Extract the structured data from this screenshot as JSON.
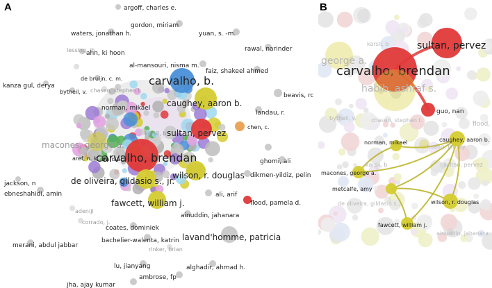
{
  "panel_a": {
    "letter": "A",
    "nodes": [
      {
        "label": "argoff, charles e.",
        "color": "#c8c8c8",
        "size": "m",
        "emph": "normal"
      },
      {
        "label": "gordon, miriam",
        "color": "#c8c8c8",
        "size": "m",
        "emph": "normal"
      },
      {
        "label": "waters, jonathan h.",
        "color": "#c8c8c8",
        "size": "m",
        "emph": "normal"
      },
      {
        "label": "yuan, s. -m.",
        "color": "#c8c8c8",
        "size": "m",
        "emph": "normal"
      },
      {
        "label": "rawal, narinder",
        "color": "#c8c8c8",
        "size": "m",
        "emph": "normal"
      },
      {
        "label": "ahn, ki hoon",
        "color": "#c8c8c8",
        "size": "m",
        "emph": "normal"
      },
      {
        "label": "al-mansouri, nisma m.",
        "color": "#c8c8c8",
        "size": "m",
        "emph": "normal"
      },
      {
        "label": "faiz, shakeel ahmed",
        "color": "#c8c8c8",
        "size": "m",
        "emph": "normal"
      },
      {
        "label": "lessing, jb",
        "color": "#c8c8c8",
        "size": "s",
        "emph": "faded"
      },
      {
        "label": "de bruijn, c. m.",
        "color": "#c8c8c8",
        "size": "s",
        "emph": "normal"
      },
      {
        "label": "carvalho, b.",
        "color": "#4a8fd8",
        "size": "xl",
        "emph": "normal"
      },
      {
        "label": "kanza gul, derya",
        "color": "#c8c8c8",
        "size": "m",
        "emph": "normal"
      },
      {
        "label": "chasen, stephen t.",
        "color": "#c8c8c8",
        "size": "s",
        "emph": "faded"
      },
      {
        "label": "bytheil, v.",
        "color": "#c8c8c8",
        "size": "s",
        "emph": "normal"
      },
      {
        "label": "beavis, rc",
        "color": "#c8c8c8",
        "size": "m",
        "emph": "normal"
      },
      {
        "label": "norman, mikael",
        "color": "#c8c8c8",
        "size": "m",
        "emph": "normal"
      },
      {
        "label": "caughey, aaron b.",
        "color": "#d4cc30",
        "size": "l",
        "emph": "normal"
      },
      {
        "label": "landau, r.",
        "color": "#c8c8c8",
        "size": "m",
        "emph": "normal"
      },
      {
        "label": "chen, c.",
        "color": "#e8a050",
        "size": "s",
        "emph": "normal"
      },
      {
        "label": "sultan, pervez",
        "color": "#e03a3a",
        "size": "l",
        "emph": "normal"
      },
      {
        "label": "macones, george a.",
        "color": "#d4cc30",
        "size": "l",
        "emph": "faded"
      },
      {
        "label": "bansal, jassimran",
        "color": "#c8c8c8",
        "size": "m",
        "emph": "normal"
      },
      {
        "label": "carvalho, brendan",
        "color": "#e03a3a",
        "size": "xl",
        "emph": "normal"
      },
      {
        "label": "karsli, b",
        "color": "#c8c8c8",
        "size": "s",
        "emph": "faded"
      },
      {
        "label": "ghomi, ali",
        "color": "#c8c8c8",
        "size": "m",
        "emph": "normal"
      },
      {
        "label": "aref, n. k.",
        "color": "#c8c8c8",
        "size": "s",
        "emph": "normal"
      },
      {
        "label": "wilson, r. douglas",
        "color": "#d4cc30",
        "size": "l",
        "emph": "normal"
      },
      {
        "label": "de oliveira, gildasio s., jr.",
        "color": "#d4cc30",
        "size": "l",
        "emph": "normal"
      },
      {
        "label": "dikmen-yildiz, pelin",
        "color": "#c8c8c8",
        "size": "m",
        "emph": "normal"
      },
      {
        "label": "jackson, n",
        "color": "#c8c8c8",
        "size": "m",
        "emph": "normal"
      },
      {
        "label": "ebneshahidi, amin",
        "color": "#c8c8c8",
        "size": "m",
        "emph": "normal"
      },
      {
        "label": "ali, arif",
        "color": "#c8c8c8",
        "size": "m",
        "emph": "normal"
      },
      {
        "label": "flood, pamela d.",
        "color": "#e03a3a",
        "size": "m",
        "emph": "normal"
      },
      {
        "label": "fawcett, william j.",
        "color": "#d4cc30",
        "size": "l",
        "emph": "normal"
      },
      {
        "label": "ainuddin, jahanara",
        "color": "#c8c8c8",
        "size": "m",
        "emph": "normal"
      },
      {
        "label": "coates, dominiek",
        "color": "#c8c8c8",
        "size": "m",
        "emph": "normal"
      },
      {
        "label": "lavand'homme, patricia",
        "color": "#c8c8c8",
        "size": "l",
        "emph": "normal"
      },
      {
        "label": "bachelier-walenta, katrin",
        "color": "#c8c8c8",
        "size": "m",
        "emph": "normal"
      },
      {
        "label": "merani, abdul jabbar",
        "color": "#c8c8c8",
        "size": "m",
        "emph": "normal"
      },
      {
        "label": "rinker, brian",
        "color": "#c8c8c8",
        "size": "s",
        "emph": "faded"
      },
      {
        "label": "lu, jianyang",
        "color": "#c8c8c8",
        "size": "m",
        "emph": "normal"
      },
      {
        "label": "alghadir, ahmad h.",
        "color": "#c8c8c8",
        "size": "m",
        "emph": "normal"
      },
      {
        "label": "ambrose, fp",
        "color": "#c8c8c8",
        "size": "m",
        "emph": "normal"
      },
      {
        "label": "jha, ajay kumar",
        "color": "#c8c8c8",
        "size": "m",
        "emph": "normal"
      },
      {
        "label": "adeniji",
        "color": "#c8c8c8",
        "size": "s",
        "emph": "faded"
      },
      {
        "label": "corrado, j.",
        "color": "#c8c8c8",
        "size": "s",
        "emph": "faded"
      }
    ],
    "links": []
  },
  "panel_b": {
    "letter": "B",
    "nodes": [
      {
        "label": "karsli, b",
        "color": "#c8c8c8",
        "size": "s",
        "emph": "faded"
      },
      {
        "label": "george a.",
        "color": "#d4cc30",
        "size": "l",
        "emph": "faded"
      },
      {
        "label": "sultan, pervez",
        "color": "#e03a3a",
        "size": "l",
        "emph": "normal"
      },
      {
        "label": "carvalho, brendan",
        "color": "#e03a3a",
        "size": "xl",
        "emph": "normal"
      },
      {
        "label": "habib, ashraf s.",
        "color": "#d4cc30",
        "size": "l",
        "emph": "faded"
      },
      {
        "label": "guo, nan",
        "color": "#e03a3a",
        "size": "m",
        "emph": "normal"
      },
      {
        "label": "bytheil, v.",
        "color": "#c8c8c8",
        "size": "s",
        "emph": "faded"
      },
      {
        "label": "chasen, stephen t.",
        "color": "#c8c8c8",
        "size": "s",
        "emph": "faded"
      },
      {
        "label": "flood,",
        "color": "#c8c8c8",
        "size": "m",
        "emph": "faded"
      },
      {
        "label": "norman, mikael",
        "color": "#d4cc30",
        "size": "s",
        "emph": "normal"
      },
      {
        "label": "huang, jeffrey",
        "color": "#d4cc30",
        "size": "s",
        "emph": "faded"
      },
      {
        "label": "caughey, aaron b.",
        "color": "#d4cc30",
        "size": "s",
        "emph": "normal"
      },
      {
        "label": "karsli, b",
        "color": "#c8c8c8",
        "size": "s",
        "emph": "faded"
      },
      {
        "label": "sultan, pervez",
        "color": "#c8c8c8",
        "size": "s",
        "emph": "faded"
      },
      {
        "label": "macones, george a.",
        "color": "#d4cc30",
        "size": "s",
        "emph": "normal"
      },
      {
        "label": "metcalfe, amy",
        "color": "#d4cc30",
        "size": "s",
        "emph": "normal"
      },
      {
        "label": "wilson, r. douglas",
        "color": "#d4cc30",
        "size": "s",
        "emph": "normal"
      },
      {
        "label": "de oliveira, gildasio s.,",
        "color": "#c8c8c8",
        "size": "s",
        "emph": "faded"
      },
      {
        "label": "fawcett, william j.",
        "color": "#d4cc30",
        "size": "s",
        "emph": "normal"
      },
      {
        "label": "ainuddin, jahanara",
        "color": "#c8c8c8",
        "size": "s",
        "emph": "faded"
      }
    ],
    "links": [
      {
        "from": "carvalho, brendan",
        "to": "sultan, pervez",
        "color": "#e03a3a"
      },
      {
        "from": "carvalho, brendan",
        "to": "guo, nan",
        "color": "#e03a3a"
      },
      {
        "from": "caughey, aaron b.",
        "to": "norman, mikael",
        "color": "#b8b020"
      },
      {
        "from": "caughey, aaron b.",
        "to": "macones, george a.",
        "color": "#b8b020"
      },
      {
        "from": "caughey, aaron b.",
        "to": "metcalfe, amy",
        "color": "#b8b020"
      },
      {
        "from": "caughey, aaron b.",
        "to": "wilson, r. douglas",
        "color": "#b8b020"
      },
      {
        "from": "caughey, aaron b.",
        "to": "fawcett, william j.",
        "color": "#b8b020"
      },
      {
        "from": "macones, george a.",
        "to": "norman, mikael",
        "color": "#b8b020"
      },
      {
        "from": "metcalfe, amy",
        "to": "wilson, r. douglas",
        "color": "#b8b020"
      },
      {
        "from": "metcalfe, amy",
        "to": "fawcett, william j.",
        "color": "#b8b020"
      }
    ]
  }
}
